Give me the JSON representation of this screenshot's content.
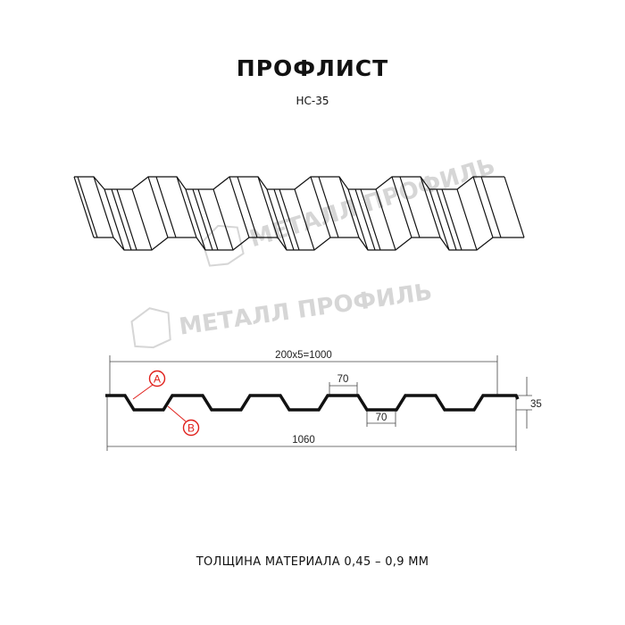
{
  "header": {
    "title": "ПРОФЛИСТ",
    "model": "НС-35"
  },
  "watermark": "МЕТАЛЛ ПРОФИЛЬ",
  "dimensions": {
    "working_width": "200x5=1000",
    "total_width": "1060",
    "crest_width": "70",
    "valley_width": "70",
    "height": "35"
  },
  "markers": {
    "a": "A",
    "b": "B"
  },
  "footer": "ТОЛЩИНА МАТЕРИАЛА 0,45 – 0,9 ММ",
  "colors": {
    "profile": "#111111",
    "marker": "#e0201b",
    "watermark": "#d6d6d6"
  }
}
